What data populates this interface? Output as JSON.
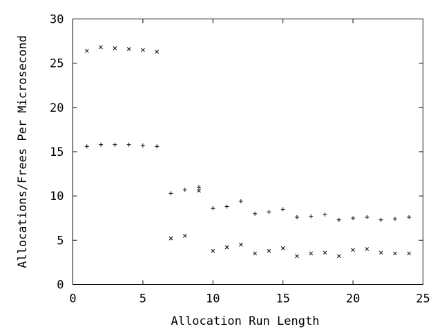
{
  "chart_data": {
    "type": "scatter",
    "title": "",
    "xlabel": "Allocation Run Length",
    "ylabel": "Allocations/Frees Per Microsecond",
    "xlim": [
      0,
      25
    ],
    "ylim": [
      0,
      30
    ],
    "xticks": [
      0,
      5,
      10,
      15,
      20,
      25
    ],
    "yticks": [
      0,
      5,
      10,
      15,
      20,
      25,
      30
    ],
    "grid": false,
    "series": [
      {
        "marker": "plus",
        "x": [
          1,
          2,
          3,
          4,
          5,
          6,
          7,
          8,
          9,
          10,
          11,
          12,
          13,
          14,
          15,
          16,
          17,
          18,
          19,
          20,
          21,
          22,
          23,
          24
        ],
        "y": [
          15.6,
          15.8,
          15.8,
          15.8,
          15.7,
          15.6,
          10.3,
          10.7,
          11.0,
          8.6,
          8.8,
          9.4,
          8.0,
          8.2,
          8.5,
          7.6,
          7.7,
          7.9,
          7.3,
          7.5,
          7.6,
          7.3,
          7.4,
          7.6
        ]
      },
      {
        "marker": "cross",
        "x": [
          1,
          2,
          3,
          4,
          5,
          6,
          7,
          8,
          9,
          10,
          11,
          12,
          13,
          14,
          15,
          16,
          17,
          18,
          19,
          20,
          21,
          22,
          23,
          24
        ],
        "y": [
          26.4,
          26.8,
          26.7,
          26.6,
          26.5,
          26.3,
          5.2,
          5.5,
          10.6,
          3.8,
          4.2,
          4.5,
          3.5,
          3.8,
          4.1,
          3.2,
          3.5,
          3.6,
          3.2,
          3.9,
          4.0,
          3.6,
          3.5,
          3.5
        ]
      }
    ]
  }
}
